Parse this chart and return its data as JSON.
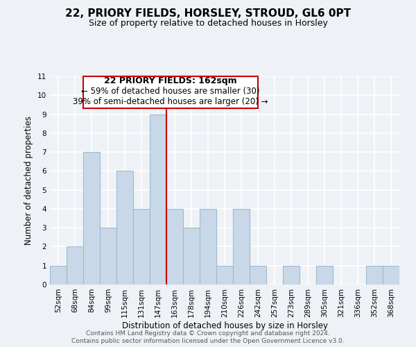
{
  "title": "22, PRIORY FIELDS, HORSLEY, STROUD, GL6 0PT",
  "subtitle": "Size of property relative to detached houses in Horsley",
  "xlabel": "Distribution of detached houses by size in Horsley",
  "ylabel": "Number of detached properties",
  "bin_labels": [
    "52sqm",
    "68sqm",
    "84sqm",
    "99sqm",
    "115sqm",
    "131sqm",
    "147sqm",
    "163sqm",
    "178sqm",
    "194sqm",
    "210sqm",
    "226sqm",
    "242sqm",
    "257sqm",
    "273sqm",
    "289sqm",
    "305sqm",
    "321sqm",
    "336sqm",
    "352sqm",
    "368sqm"
  ],
  "bar_heights": [
    1,
    2,
    7,
    3,
    6,
    4,
    9,
    4,
    3,
    4,
    1,
    4,
    1,
    0,
    1,
    0,
    1,
    0,
    0,
    1,
    1
  ],
  "bar_color": "#c8d8e8",
  "bar_edge_color": "#a0b8cc",
  "highlight_line_color": "#cc0000",
  "highlight_bin_index": 7,
  "ylim": [
    0,
    11
  ],
  "yticks": [
    0,
    1,
    2,
    3,
    4,
    5,
    6,
    7,
    8,
    9,
    10,
    11
  ],
  "annotation_title": "22 PRIORY FIELDS: 162sqm",
  "annotation_line1": "← 59% of detached houses are smaller (30)",
  "annotation_line2": "39% of semi-detached houses are larger (20) →",
  "annotation_box_color": "#ffffff",
  "annotation_box_edge": "#cc0000",
  "footer_line1": "Contains HM Land Registry data © Crown copyright and database right 2024.",
  "footer_line2": "Contains public sector information licensed under the Open Government Licence v3.0.",
  "title_fontsize": 11,
  "subtitle_fontsize": 9,
  "axis_label_fontsize": 8.5,
  "tick_fontsize": 7.5,
  "annotation_title_fontsize": 9,
  "annotation_text_fontsize": 8.5,
  "footer_fontsize": 6.5,
  "background_color": "#eef2f7"
}
